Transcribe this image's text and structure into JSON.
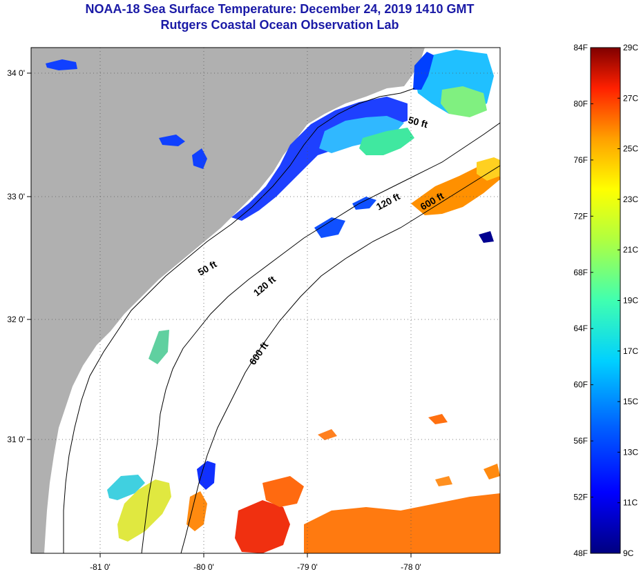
{
  "header": {
    "title": "NOAA-18 Sea Surface Temperature:  December 24, 2019 1410 GMT",
    "subtitle": "Rutgers Coastal Ocean Observation Lab"
  },
  "map": {
    "lon_ticks": [
      "-81 0'",
      "-80 0'",
      "-79 0'",
      "-78 0'"
    ],
    "lat_ticks": [
      "34 0'",
      "33 0'",
      "32 0'",
      "31 0'"
    ],
    "isobaths": {
      "50ft": "50 ft",
      "120ft": "120 ft",
      "600ft": "600 ft"
    }
  },
  "colorbar": {
    "fahrenheit_labels": [
      "84F",
      "80F",
      "76F",
      "72F",
      "68F",
      "64F",
      "60F",
      "56F",
      "52F",
      "48F"
    ],
    "celsius_labels": [
      "29C",
      "27C",
      "25C",
      "23C",
      "21C",
      "19C",
      "17C",
      "15C",
      "13C",
      "11C",
      "9C"
    ]
  },
  "colors": {
    "land": "#b0b0b0",
    "cloud": "#ffffff",
    "title": "#1a1aa6"
  }
}
